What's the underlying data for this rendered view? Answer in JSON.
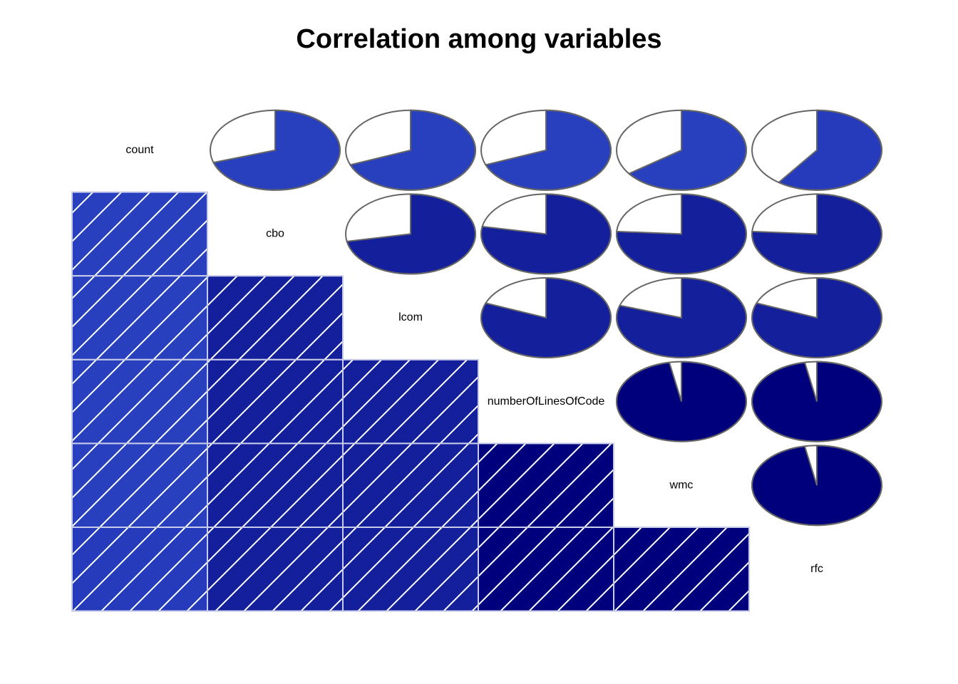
{
  "chart_data": {
    "type": "heatmap",
    "title": "Correlation among variables",
    "variables": [
      "count",
      "cbo",
      "lcom",
      "numberOfLinesOfCode",
      "wmc",
      "rfc"
    ],
    "upper_panel": "pie",
    "lower_panel": "shade",
    "colors": {
      "r_0.70": "#2840BE",
      "r_0.75": "#263BBB",
      "r_0.80": "#1D2FA9",
      "r_0.85": "#131F9B",
      "r_0.99": "#00007D",
      "pie_outline": "#666666",
      "cell_border": "#C8CCE8",
      "hatch": "#FFFFFF"
    },
    "correlations": [
      {
        "row": "count",
        "col": "cbo",
        "r": 0.7,
        "color": "#2840BE"
      },
      {
        "row": "count",
        "col": "lcom",
        "r": 0.69,
        "color": "#2840BE"
      },
      {
        "row": "count",
        "col": "numberOfLinesOfCode",
        "r": 0.69,
        "color": "#2840BE"
      },
      {
        "row": "count",
        "col": "wmc",
        "r": 0.65,
        "color": "#2840BE"
      },
      {
        "row": "count",
        "col": "rfc",
        "r": 0.6,
        "color": "#263BBB"
      },
      {
        "row": "cbo",
        "col": "lcom",
        "r": 0.72,
        "color": "#131F9B"
      },
      {
        "row": "cbo",
        "col": "numberOfLinesOfCode",
        "r": 0.78,
        "color": "#131F9B"
      },
      {
        "row": "cbo",
        "col": "wmc",
        "r": 0.76,
        "color": "#131F9B"
      },
      {
        "row": "cbo",
        "col": "rfc",
        "r": 0.76,
        "color": "#131F9B"
      },
      {
        "row": "lcom",
        "col": "numberOfLinesOfCode",
        "r": 0.81,
        "color": "#131F9B"
      },
      {
        "row": "lcom",
        "col": "wmc",
        "r": 0.8,
        "color": "#131F9B"
      },
      {
        "row": "lcom",
        "col": "rfc",
        "r": 0.81,
        "color": "#131F9B"
      },
      {
        "row": "numberOfLinesOfCode",
        "col": "wmc",
        "r": 0.97,
        "color": "#00007D"
      },
      {
        "row": "numberOfLinesOfCode",
        "col": "rfc",
        "r": 0.97,
        "color": "#00007D"
      },
      {
        "row": "wmc",
        "col": "rfc",
        "r": 0.97,
        "color": "#00007D"
      }
    ]
  }
}
